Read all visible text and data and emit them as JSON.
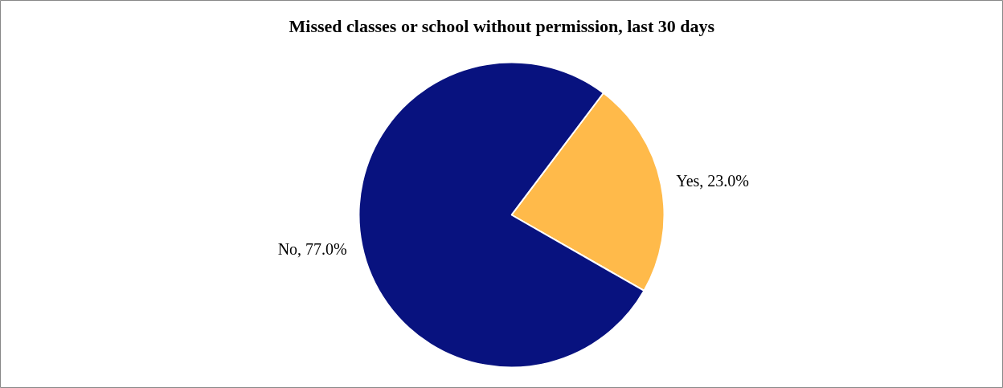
{
  "chart_data": {
    "type": "pie",
    "title": "Missed classes or school without permission, last 30 days",
    "categories": [
      "Yes",
      "No"
    ],
    "values": [
      23.0,
      77.0
    ],
    "colors": [
      "#ffba4a",
      "#08127f"
    ],
    "value_labels": [
      "23.0%",
      "77.0%"
    ]
  }
}
